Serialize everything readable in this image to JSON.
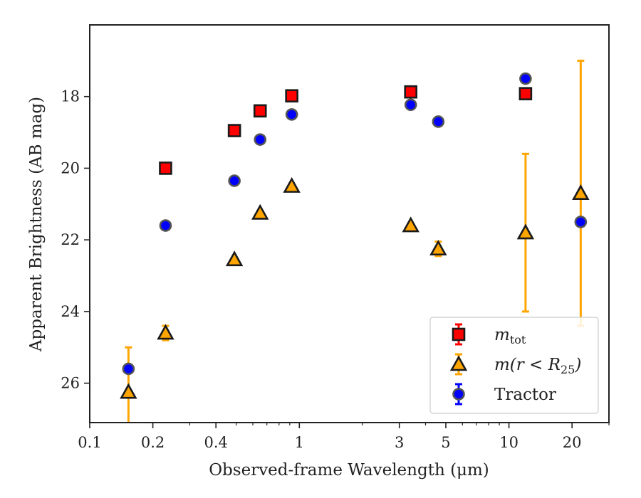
{
  "chart_data": {
    "type": "scatter",
    "xlabel": "Observed-frame Wavelength (μm)",
    "ylabel": "Apparent Brightness (AB mag)",
    "x_scale": "log",
    "xlim": [
      0.1,
      30
    ],
    "ylim": [
      27.1,
      16.0
    ],
    "y_inverted": true,
    "x_ticks": [
      0.1,
      0.2,
      0.4,
      1,
      3,
      5,
      10,
      20
    ],
    "x_tick_labels": [
      "0.1",
      "0.2",
      "0.4",
      "1",
      "3",
      "5",
      "10",
      "20"
    ],
    "y_ticks": [
      18,
      20,
      22,
      24,
      26
    ],
    "y_tick_labels": [
      "18",
      "20",
      "22",
      "24",
      "26"
    ],
    "grid": false,
    "legend_position": "lower-right",
    "series": [
      {
        "name": "m_tot",
        "legend_main": "m",
        "legend_sub": "tot",
        "marker": "square",
        "color": "#ff0000",
        "edge_color": "#1a1a1a",
        "error_color": "#ff0000",
        "points": [
          {
            "x": 0.23,
            "y": 20.0
          },
          {
            "x": 0.49,
            "y": 18.95
          },
          {
            "x": 0.65,
            "y": 18.4
          },
          {
            "x": 0.92,
            "y": 17.98
          },
          {
            "x": 3.4,
            "y": 17.87
          },
          {
            "x": 12.0,
            "y": 17.92
          }
        ]
      },
      {
        "name": "m(r<R_25)",
        "legend_main": "m(r < R",
        "legend_sub": "25",
        "legend_tail": ")",
        "marker": "triangle",
        "color": "#ffa500",
        "edge_color": "#1a1a1a",
        "error_color": "#ffa500",
        "points": [
          {
            "x": 0.153,
            "y": 26.25,
            "err_lo": 1.25,
            "err_hi": 1.3
          },
          {
            "x": 0.23,
            "y": 24.6,
            "err_lo": 0.2,
            "err_hi": 0.2
          },
          {
            "x": 0.49,
            "y": 22.55
          },
          {
            "x": 0.65,
            "y": 21.25
          },
          {
            "x": 0.92,
            "y": 20.5
          },
          {
            "x": 3.4,
            "y": 21.6
          },
          {
            "x": 4.6,
            "y": 22.25,
            "err_lo": 0.2,
            "err_hi": 0.2
          },
          {
            "x": 12.0,
            "y": 21.8,
            "err_lo": 2.2,
            "err_hi": 2.2
          },
          {
            "x": 22.0,
            "y": 20.7,
            "err_lo": 3.7,
            "err_hi": 3.7
          }
        ]
      },
      {
        "name": "Tractor",
        "legend_main": "Tractor",
        "marker": "circle",
        "color": "#0000ff",
        "edge_color": "#555555",
        "error_color": "#0000ff",
        "points": [
          {
            "x": 0.153,
            "y": 25.6
          },
          {
            "x": 0.23,
            "y": 21.6
          },
          {
            "x": 0.49,
            "y": 20.35
          },
          {
            "x": 0.65,
            "y": 19.2
          },
          {
            "x": 0.92,
            "y": 18.5
          },
          {
            "x": 3.4,
            "y": 18.23
          },
          {
            "x": 4.6,
            "y": 18.7
          },
          {
            "x": 12.0,
            "y": 17.5
          },
          {
            "x": 22.0,
            "y": 21.5
          }
        ]
      }
    ]
  }
}
